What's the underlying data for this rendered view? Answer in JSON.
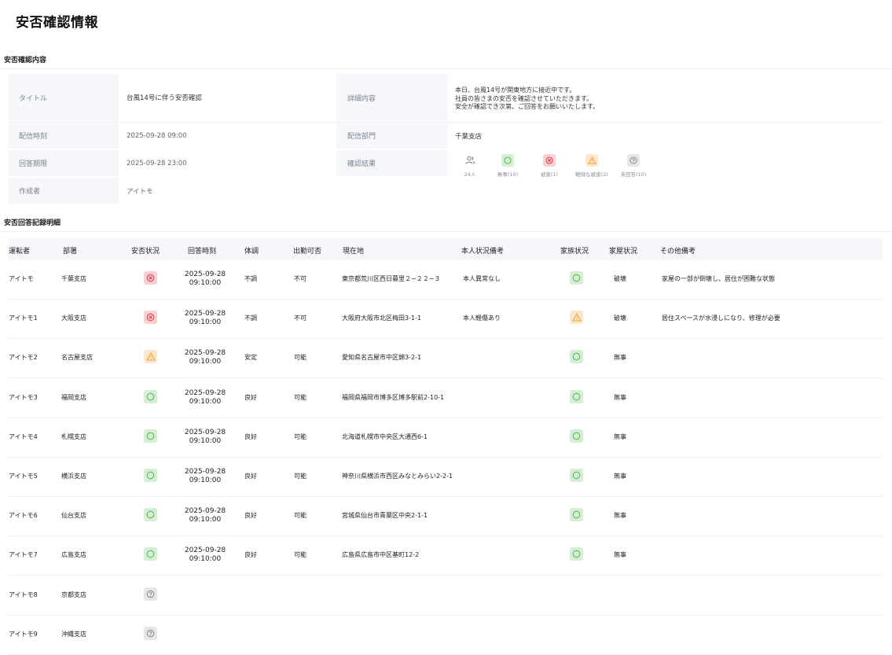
{
  "page": {
    "title": "安否確認情報"
  },
  "sections": {
    "content_title": "安否確認内容",
    "records_title": "安否回答記録明細"
  },
  "info": {
    "title_label": "タイトル",
    "title_value": "台風14号に伴う安否確認",
    "detail_label": "詳細内容",
    "detail_lines": [
      "本日、台風14号が関東地方に接近中です。",
      "社員の皆さまの安否を確認させていただきます。",
      "安全が確認でき次第、ご回答をお願いいたします。"
    ],
    "sent_label": "配信時刻",
    "sent_value": "2025-09-28 09:00",
    "dept_label": "配信部門",
    "dept_value": "千葉支店",
    "deadline_label": "回答期限",
    "deadline_value": "2025-09-28 23:00",
    "result_label": "確認結果",
    "author_label": "作成者",
    "author_value": "アイトモ",
    "stats": [
      {
        "icon": "users-icon",
        "label": "24人"
      },
      {
        "icon": "safe-circle-icon",
        "label": "無事(10)"
      },
      {
        "icon": "damage-cross-icon",
        "label": "被害(1)"
      },
      {
        "icon": "minor-warning-icon",
        "label": "軽微な被害(2)"
      },
      {
        "icon": "unanswered-question-icon",
        "label": "未回答(10)"
      }
    ]
  },
  "table": {
    "headers": [
      "運転者",
      "部署",
      "安否状況",
      "回答時刻",
      "体調",
      "出勤可否",
      "現在地",
      "本人状況備考",
      "家族状況",
      "家屋状況",
      "その他備考"
    ],
    "rows": [
      {
        "driver": "アイトモ",
        "dept": "千葉支店",
        "safety": "ng",
        "date": "2025-09-28",
        "time": "09:10:00",
        "health": "不調",
        "attend": "不可",
        "location": "東京都荒川区西日暮里２−２２−３",
        "self_note": "本人異常なし",
        "family": "ok",
        "house": "破壊",
        "other": "家屋の一部が倒壊し、居住が困難な状態"
      },
      {
        "driver": "アイトモ1",
        "dept": "大阪支店",
        "safety": "ng",
        "date": "2025-09-28",
        "time": "09:10:00",
        "health": "不調",
        "attend": "不可",
        "location": "大阪府大阪市北区梅田3-1-1",
        "self_note": "本人軽傷あり",
        "family": "warn",
        "house": "破壊",
        "other": "居住スペースが水浸しになり、修理が必要"
      },
      {
        "driver": "アイトモ2",
        "dept": "名古屋支店",
        "safety": "warn",
        "date": "2025-09-28",
        "time": "09:10:00",
        "health": "安定",
        "attend": "可能",
        "location": "愛知県名古屋市中区錦3-2-1",
        "self_note": "",
        "family": "ok",
        "house": "無事",
        "other": ""
      },
      {
        "driver": "アイトモ3",
        "dept": "福岡支店",
        "safety": "ok",
        "date": "2025-09-28",
        "time": "09:10:00",
        "health": "良好",
        "attend": "可能",
        "location": "福岡県福岡市博多区博多駅前2-10-1",
        "self_note": "",
        "family": "ok",
        "house": "無事",
        "other": ""
      },
      {
        "driver": "アイトモ4",
        "dept": "札幌支店",
        "safety": "ok",
        "date": "2025-09-28",
        "time": "09:10:00",
        "health": "良好",
        "attend": "可能",
        "location": "北海道札幌市中央区大通西6-1",
        "self_note": "",
        "family": "ok",
        "house": "無事",
        "other": ""
      },
      {
        "driver": "アイトモ5",
        "dept": "横浜支店",
        "safety": "ok",
        "date": "2025-09-28",
        "time": "09:10:00",
        "health": "良好",
        "attend": "可能",
        "location": "神奈川県横浜市西区みなとみらい2-2-1",
        "self_note": "",
        "family": "ok",
        "house": "無事",
        "other": ""
      },
      {
        "driver": "アイトモ6",
        "dept": "仙台支店",
        "safety": "ok",
        "date": "2025-09-28",
        "time": "09:10:00",
        "health": "良好",
        "attend": "可能",
        "location": "宮城県仙台市青葉区中央2-1-1",
        "self_note": "",
        "family": "ok",
        "house": "無事",
        "other": ""
      },
      {
        "driver": "アイトモ7",
        "dept": "広島支店",
        "safety": "ok",
        "date": "2025-09-28",
        "time": "09:10:00",
        "health": "良好",
        "attend": "可能",
        "location": "広島県広島市中区基町12-2",
        "self_note": "",
        "family": "ok",
        "house": "無事",
        "other": ""
      },
      {
        "driver": "アイトモ8",
        "dept": "京都支店",
        "safety": "q",
        "date": "",
        "time": "",
        "health": "",
        "attend": "",
        "location": "",
        "self_note": "",
        "family": "",
        "house": "",
        "other": ""
      },
      {
        "driver": "アイトモ9",
        "dept": "沖縄支店",
        "safety": "q",
        "date": "",
        "time": "",
        "health": "",
        "attend": "",
        "location": "",
        "self_note": "",
        "family": "",
        "house": "",
        "other": ""
      }
    ]
  },
  "colors": {
    "ok": "#5cb85c",
    "ng": "#e0444f",
    "warn": "#f0a030",
    "q": "#8a8a8e",
    "label_bg": "#f6f7fb"
  }
}
